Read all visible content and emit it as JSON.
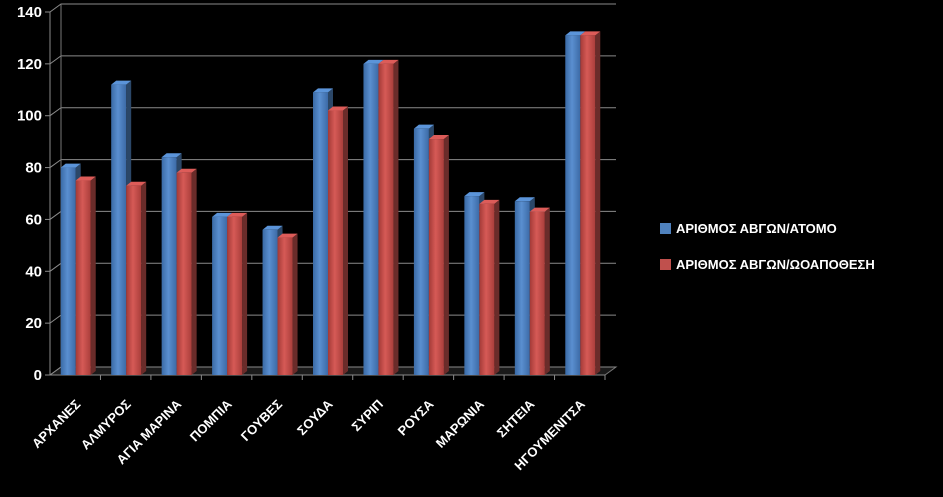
{
  "chart_data": {
    "type": "bar",
    "title": "",
    "xlabel": "",
    "ylabel": "",
    "ylim": [
      0,
      140
    ],
    "yticks": [
      "0",
      "20",
      "40",
      "60",
      "80",
      "100",
      "120",
      "140"
    ],
    "categories": [
      "ΑΡΧΑΝΕΣ",
      "ΑΛΜΥΡΟΣ",
      "ΑΓΙΑ ΜΑΡΙΝΑ",
      "ΠΟΜΠΙΑ",
      "ΓΟΥΒΕΣ",
      "ΣΟΥΔΑ",
      "ΣΥΡΙΠ",
      "ΡΟΥΣΑ",
      "ΜΑΡΩΝΙΑ",
      "ΣΗΤΕΙΑ",
      "ΗΓΟΥΜΕΝΙΤΣΑ"
    ],
    "series": [
      {
        "name": "ΑΡΙΘΜΟΣ ΑΒΓΩΝ/ΑΤΟΜΟ",
        "color": "#4f81bd",
        "values": [
          80,
          112,
          84,
          61,
          56,
          109,
          120,
          95,
          69,
          67,
          131
        ]
      },
      {
        "name": "ΑΡΙΘΜΟΣ ΑΒΓΩΝ/ΩΟΑΠΟΘΕΣΗ",
        "color": "#c0504d",
        "values": [
          75,
          73,
          78,
          61,
          53,
          102,
          120,
          91,
          66,
          63,
          131
        ]
      }
    ],
    "grid": true,
    "legend_position": "right"
  }
}
